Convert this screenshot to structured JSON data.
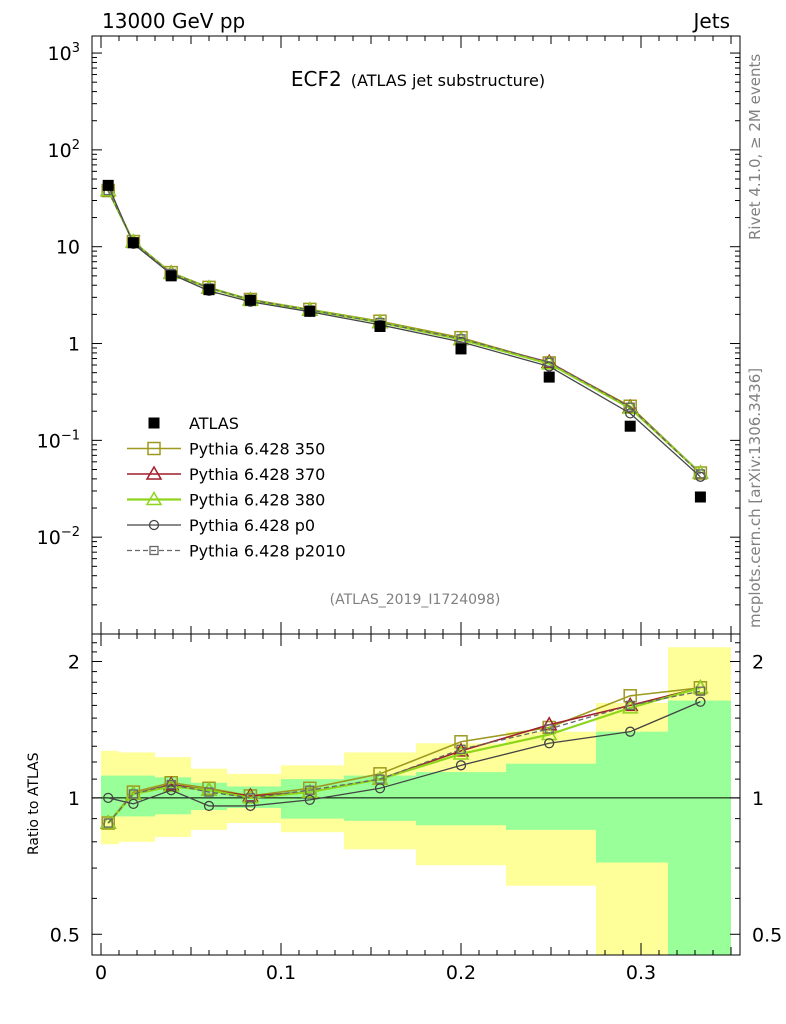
{
  "header": {
    "left": "13000 GeV pp",
    "right": "Jets"
  },
  "title": {
    "main": "ECF2",
    "sub": "(ATLAS jet substructure)"
  },
  "side_text": {
    "top": "Rivet 4.1.0, ≥ 2M events",
    "bottom": "mcplots.cern.ch [arXiv:1306.3436]"
  },
  "analysis_id": "(ATLAS_2019_I1724098)",
  "ratio_ylabel": "Ratio to ATLAS",
  "colors": {
    "data": "#000000",
    "p350": "#9e9a1f",
    "p370": "#a01e2a",
    "p380": "#8ed51c",
    "p0": "#444444",
    "p2010": "#666666",
    "band_inner": "#99ff99",
    "band_outer": "#ffff99"
  },
  "chart_data": [
    {
      "type": "line",
      "title": "ECF2 (ATLAS jet substructure)",
      "yscale": "log",
      "xlim": [
        -0.005,
        0.355
      ],
      "ylim": [
        0.001,
        1500
      ],
      "x": [
        0.004,
        0.018,
        0.039,
        0.06,
        0.083,
        0.116,
        0.155,
        0.2,
        0.249,
        0.294,
        0.333
      ],
      "y_tick_labels": [
        "10^3",
        "10^2",
        "10",
        "1",
        "10^-1",
        "10^-2"
      ],
      "legend": {
        "placement": "lower-left",
        "entries": [
          "ATLAS",
          "Pythia 6.428 350",
          "Pythia 6.428 370",
          "Pythia 6.428 380",
          "Pythia 6.428 p0",
          "Pythia 6.428 p2010"
        ]
      },
      "series": [
        {
          "name": "ATLAS",
          "values": [
            43,
            11,
            5.0,
            3.6,
            2.8,
            2.15,
            1.5,
            0.88,
            0.45,
            0.14,
            0.026
          ]
        },
        {
          "name": "Pythia 6.428 350",
          "values": [
            38,
            11.3,
            5.4,
            3.8,
            2.85,
            2.25,
            1.7,
            1.15,
            0.63,
            0.225,
            0.046
          ]
        },
        {
          "name": "Pythia 6.428 370",
          "values": [
            38,
            11.2,
            5.35,
            3.75,
            2.82,
            2.22,
            1.65,
            1.1,
            0.64,
            0.22,
            0.046
          ]
        },
        {
          "name": "Pythia 6.428 380",
          "values": [
            38,
            11.2,
            5.3,
            3.75,
            2.8,
            2.22,
            1.65,
            1.1,
            0.62,
            0.215,
            0.046
          ]
        },
        {
          "name": "Pythia 6.428 p0",
          "values": [
            43,
            10.7,
            5.2,
            3.5,
            2.7,
            2.13,
            1.56,
            1.04,
            0.58,
            0.19,
            0.042
          ]
        },
        {
          "name": "Pythia 6.428 p2010",
          "values": [
            38,
            11.2,
            5.3,
            3.75,
            2.82,
            2.22,
            1.65,
            1.12,
            0.64,
            0.22,
            0.045
          ]
        }
      ]
    },
    {
      "type": "line",
      "title": "Ratio to ATLAS",
      "ylabel": "Ratio to ATLAS",
      "yscale": "log",
      "xlim": [
        -0.005,
        0.355
      ],
      "ylim": [
        0.45,
        2.3
      ],
      "x_ticks": [
        0,
        0.1,
        0.2,
        0.3
      ],
      "x_tick_labels": [
        "0",
        "0.1",
        "0.2",
        "0.3"
      ],
      "y_ticks": [
        0.5,
        1,
        2
      ],
      "y_tick_labels": [
        "0.5",
        "1",
        "2"
      ],
      "x": [
        0.004,
        0.018,
        0.039,
        0.06,
        0.083,
        0.116,
        0.155,
        0.2,
        0.249,
        0.294,
        0.333
      ],
      "bin_edges": [
        0,
        0.01,
        0.03,
        0.05,
        0.07,
        0.1,
        0.135,
        0.175,
        0.225,
        0.275,
        0.315,
        0.35
      ],
      "band_inner": [
        [
          0.91,
          1.12
        ],
        [
          0.91,
          1.12
        ],
        [
          0.92,
          1.11
        ],
        [
          0.94,
          1.08
        ],
        [
          0.95,
          1.06
        ],
        [
          0.9,
          1.1
        ],
        [
          0.89,
          1.12
        ],
        [
          0.87,
          1.14
        ],
        [
          0.85,
          1.19
        ],
        [
          0.72,
          1.4
        ],
        [
          0.45,
          1.64
        ]
      ],
      "band_outer": [
        [
          0.79,
          1.27
        ],
        [
          0.8,
          1.26
        ],
        [
          0.82,
          1.23
        ],
        [
          0.85,
          1.16
        ],
        [
          0.88,
          1.13
        ],
        [
          0.84,
          1.18
        ],
        [
          0.77,
          1.26
        ],
        [
          0.71,
          1.32
        ],
        [
          0.64,
          1.4
        ],
        [
          0.45,
          1.62
        ],
        [
          0.45,
          2.15
        ]
      ],
      "series": [
        {
          "name": "Pythia 6.428 350",
          "values": [
            0.88,
            1.03,
            1.08,
            1.05,
            1.01,
            1.05,
            1.13,
            1.33,
            1.43,
            1.68,
            1.75
          ]
        },
        {
          "name": "Pythia 6.428 370",
          "values": [
            0.88,
            1.02,
            1.07,
            1.04,
            1.01,
            1.03,
            1.1,
            1.27,
            1.45,
            1.6,
            1.75
          ]
        },
        {
          "name": "Pythia 6.428 380",
          "values": [
            0.88,
            1.02,
            1.06,
            1.04,
            1.0,
            1.03,
            1.1,
            1.25,
            1.38,
            1.58,
            1.75
          ]
        },
        {
          "name": "Pythia 6.428 p0",
          "values": [
            1.0,
            0.97,
            1.04,
            0.96,
            0.96,
            0.99,
            1.05,
            1.18,
            1.32,
            1.4,
            1.63
          ]
        },
        {
          "name": "Pythia 6.428 p2010",
          "values": [
            0.88,
            1.02,
            1.07,
            1.03,
            1.0,
            1.04,
            1.1,
            1.28,
            1.42,
            1.6,
            1.72
          ]
        }
      ]
    }
  ]
}
